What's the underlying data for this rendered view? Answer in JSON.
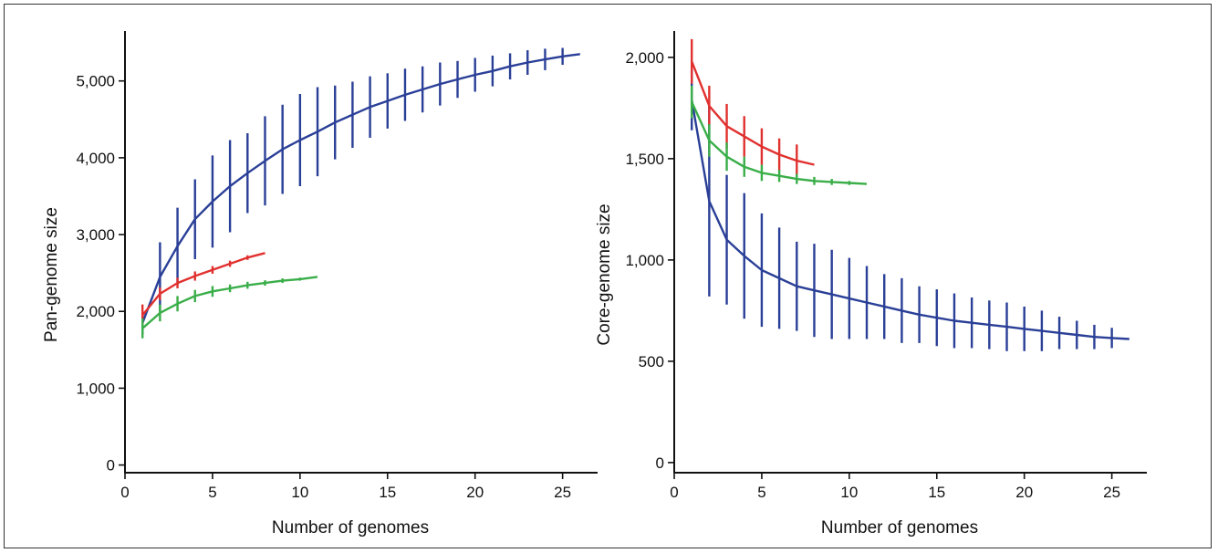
{
  "chart_data": [
    {
      "type": "line",
      "xlabel": "Number of genomes",
      "ylabel": "Pan-genome size",
      "xlim": [
        0,
        27
      ],
      "ylim": [
        -100,
        5650
      ],
      "xticks": [
        0,
        5,
        10,
        15,
        20,
        25
      ],
      "xtick_labels": [
        "0",
        "5",
        "10",
        "15",
        "20",
        "25"
      ],
      "yticks": [
        0,
        1000,
        2000,
        3000,
        4000,
        5000
      ],
      "ytick_labels": [
        "0",
        "1,000",
        "2,000",
        "3,000",
        "4,000",
        "5,000"
      ],
      "series": [
        {
          "color": "#2a3f97",
          "x": [
            1,
            2,
            3,
            4,
            5,
            6,
            7,
            8,
            9,
            10,
            11,
            12,
            13,
            14,
            15,
            16,
            17,
            18,
            19,
            20,
            21,
            22,
            23,
            24,
            25,
            26
          ],
          "y": [
            1850,
            2450,
            2850,
            3200,
            3430,
            3630,
            3800,
            3960,
            4110,
            4230,
            4340,
            4460,
            4560,
            4660,
            4740,
            4820,
            4890,
            4960,
            5020,
            5080,
            5130,
            5190,
            5240,
            5280,
            5320,
            5350
          ],
          "error": [
            150,
            450,
            500,
            520,
            600,
            600,
            520,
            580,
            580,
            600,
            580,
            480,
            430,
            400,
            360,
            340,
            300,
            280,
            240,
            220,
            200,
            170,
            160,
            140,
            110,
            0
          ]
        },
        {
          "color": "#e0312f",
          "x": [
            1,
            2,
            3,
            4,
            5,
            6,
            7,
            8
          ],
          "y": [
            1950,
            2230,
            2370,
            2460,
            2540,
            2620,
            2700,
            2760
          ],
          "error": [
            140,
            80,
            70,
            60,
            50,
            40,
            30,
            0
          ]
        },
        {
          "color": "#3aae49",
          "x": [
            1,
            2,
            3,
            4,
            5,
            6,
            7,
            8,
            9,
            10,
            11
          ],
          "y": [
            1780,
            1980,
            2100,
            2200,
            2260,
            2300,
            2340,
            2370,
            2400,
            2420,
            2450
          ],
          "error": [
            130,
            110,
            100,
            80,
            70,
            50,
            45,
            35,
            30,
            20,
            0
          ]
        }
      ]
    },
    {
      "type": "line",
      "xlabel": "Number of genomes",
      "ylabel": "Core-genome size",
      "xlim": [
        0,
        27
      ],
      "ylim": [
        -50,
        2130
      ],
      "xticks": [
        0,
        5,
        10,
        15,
        20,
        25
      ],
      "xtick_labels": [
        "0",
        "5",
        "10",
        "15",
        "20",
        "25"
      ],
      "yticks": [
        0,
        500,
        1000,
        1500,
        2000
      ],
      "ytick_labels": [
        "0",
        "500",
        "1,000",
        "1,500",
        "2,000"
      ],
      "series": [
        {
          "color": "#2a3f97",
          "x": [
            1,
            2,
            3,
            4,
            5,
            6,
            7,
            8,
            9,
            10,
            11,
            12,
            13,
            14,
            15,
            16,
            17,
            18,
            19,
            20,
            21,
            22,
            23,
            24,
            25,
            26
          ],
          "y": [
            1790,
            1290,
            1100,
            1020,
            950,
            910,
            870,
            850,
            830,
            810,
            790,
            770,
            750,
            730,
            715,
            700,
            690,
            680,
            670,
            660,
            650,
            640,
            630,
            620,
            615,
            610
          ],
          "error": [
            150,
            470,
            320,
            310,
            280,
            250,
            220,
            230,
            220,
            200,
            180,
            160,
            160,
            140,
            140,
            135,
            125,
            120,
            120,
            110,
            100,
            80,
            70,
            60,
            50,
            0
          ]
        },
        {
          "color": "#e0312f",
          "x": [
            1,
            2,
            3,
            4,
            5,
            6,
            7,
            8
          ],
          "y": [
            1980,
            1760,
            1660,
            1610,
            1560,
            1520,
            1490,
            1470
          ],
          "error": [
            110,
            100,
            110,
            100,
            90,
            80,
            80,
            0
          ]
        },
        {
          "color": "#3aae49",
          "x": [
            1,
            2,
            3,
            4,
            5,
            6,
            7,
            8,
            9,
            10,
            11
          ],
          "y": [
            1780,
            1590,
            1510,
            1460,
            1430,
            1415,
            1400,
            1390,
            1385,
            1380,
            1375
          ],
          "error": [
            80,
            80,
            70,
            50,
            40,
            30,
            25,
            20,
            15,
            10,
            0
          ]
        }
      ]
    }
  ]
}
